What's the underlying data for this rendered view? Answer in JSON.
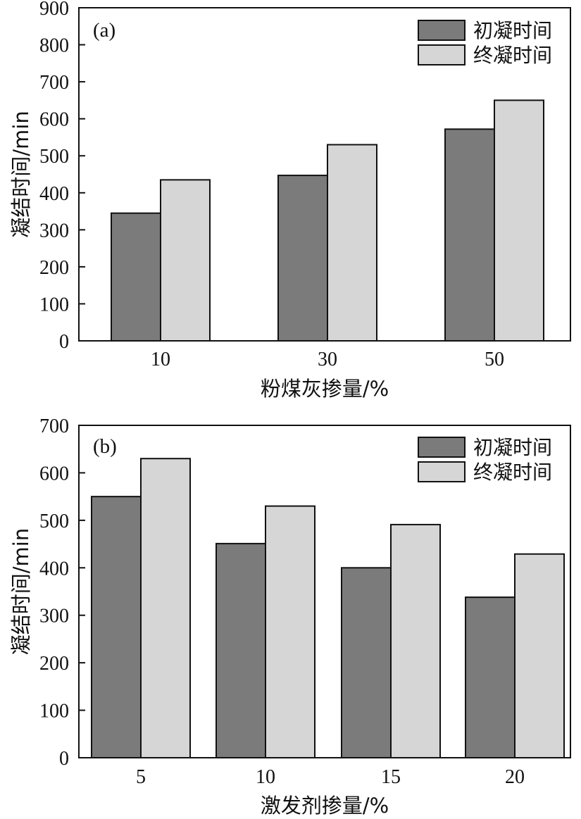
{
  "colors": {
    "initial": "#7b7b7b",
    "final": "#d6d6d6",
    "axis": "#111111"
  },
  "chart_data": [
    {
      "type": "bar",
      "panel_label": "(a)",
      "categories": [
        "10",
        "30",
        "50"
      ],
      "series": [
        {
          "name": "初凝时间",
          "values": [
            345,
            447,
            572
          ]
        },
        {
          "name": "终凝时间",
          "values": [
            435,
            530,
            650
          ]
        }
      ],
      "xlabel": "粉煤灰掺量/%",
      "ylabel": "凝结时间/min",
      "ylim": [
        0,
        900
      ],
      "yticks": [
        0,
        100,
        200,
        300,
        400,
        500,
        600,
        700,
        800,
        900
      ],
      "legend": "top-right",
      "grid": false
    },
    {
      "type": "bar",
      "panel_label": "(b)",
      "categories": [
        "5",
        "10",
        "15",
        "20"
      ],
      "series": [
        {
          "name": "初凝时间",
          "values": [
            550,
            451,
            400,
            338
          ]
        },
        {
          "name": "终凝时间",
          "values": [
            630,
            530,
            491,
            429
          ]
        }
      ],
      "xlabel": "激发剂掺量/%",
      "ylabel": "凝结时间/min",
      "ylim": [
        0,
        700
      ],
      "yticks": [
        0,
        100,
        200,
        300,
        400,
        500,
        600,
        700
      ],
      "legend": "top-right",
      "grid": false
    }
  ]
}
